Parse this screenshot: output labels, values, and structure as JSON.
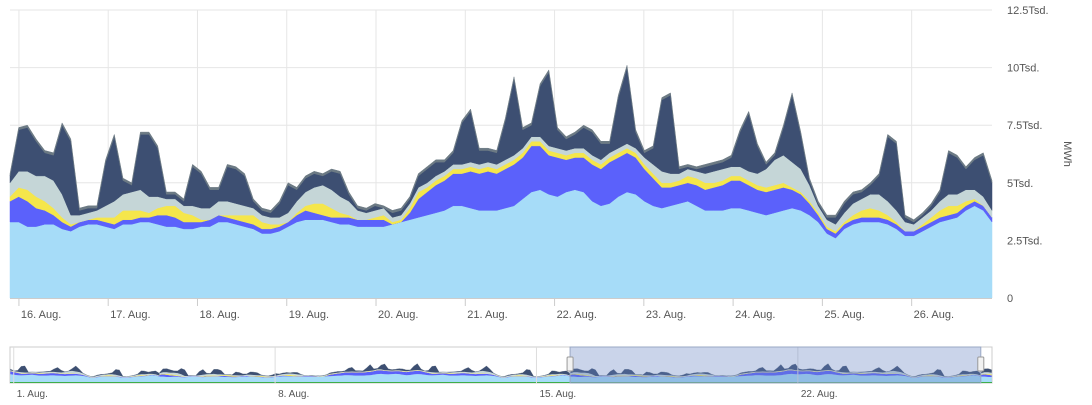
{
  "chart_data": {
    "type": "area",
    "stacked": true,
    "ylabel": "MWh",
    "ylim": [
      0,
      12500
    ],
    "y_ticks": [
      {
        "value": 0,
        "label": "0"
      },
      {
        "value": 2500,
        "label": "2.5Tsd."
      },
      {
        "value": 5000,
        "label": "5Tsd."
      },
      {
        "value": 7500,
        "label": "7.5Tsd."
      },
      {
        "value": 10000,
        "label": "10Tsd."
      },
      {
        "value": 12500,
        "label": "12.5Tsd."
      }
    ],
    "x_ticks": [
      {
        "day": 16,
        "label": "16. Aug."
      },
      {
        "day": 17,
        "label": "17. Aug."
      },
      {
        "day": 18,
        "label": "18. Aug."
      },
      {
        "day": 19,
        "label": "19. Aug."
      },
      {
        "day": 20,
        "label": "20. Aug."
      },
      {
        "day": 21,
        "label": "21. Aug."
      },
      {
        "day": 22,
        "label": "22. Aug."
      },
      {
        "day": 23,
        "label": "23. Aug."
      },
      {
        "day": 24,
        "label": "24. Aug."
      },
      {
        "day": 25,
        "label": "25. Aug."
      },
      {
        "day": 26,
        "label": "26. Aug."
      }
    ],
    "xlim_days": [
      15.9,
      26.9
    ],
    "grid": true,
    "legend": "none",
    "series": [
      {
        "color": "#a6dcf8",
        "values": [
          3300,
          3300,
          3100,
          3100,
          3200,
          3200,
          3000,
          2900,
          3100,
          3200,
          3200,
          3100,
          3000,
          3200,
          3200,
          3300,
          3300,
          3200,
          3100,
          3100,
          3000,
          3000,
          3100,
          3100,
          3300,
          3300,
          3200,
          3100,
          3000,
          2800,
          2800,
          2900,
          3100,
          3300,
          3400,
          3400,
          3400,
          3300,
          3200,
          3200,
          3100,
          3100,
          3100,
          3100,
          3200,
          3300,
          3400,
          3500,
          3600,
          3700,
          3800,
          4000,
          4000,
          3900,
          3800,
          3800,
          3800,
          3900,
          4000,
          4300,
          4600,
          4700,
          4500,
          4400,
          4600,
          4700,
          4600,
          4200,
          4000,
          4100,
          4400,
          4600,
          4500,
          4200,
          4000,
          3900,
          4000,
          4100,
          4200,
          4000,
          3800,
          3800,
          3800,
          3900,
          3900,
          3800,
          3700,
          3600,
          3700,
          3800,
          3900,
          3800,
          3600,
          3300,
          2800,
          2600,
          3000,
          3200,
          3300,
          3300,
          3300,
          3200,
          3000,
          2700,
          2700,
          2900,
          3100,
          3300,
          3400,
          3500,
          3800,
          4000,
          3800,
          3300
        ]
      },
      {
        "color": "#5b61fb",
        "values": [
          900,
          1100,
          1100,
          800,
          600,
          400,
          300,
          200,
          200,
          200,
          200,
          200,
          200,
          200,
          200,
          200,
          200,
          400,
          500,
          400,
          300,
          300,
          200,
          300,
          300,
          200,
          200,
          200,
          200,
          200,
          200,
          200,
          200,
          300,
          400,
          300,
          200,
          200,
          300,
          300,
          300,
          300,
          300,
          300,
          0,
          0,
          300,
          800,
          1000,
          1200,
          1300,
          1400,
          1400,
          1600,
          1600,
          1700,
          1600,
          1700,
          1800,
          1800,
          2000,
          1900,
          1700,
          1700,
          1400,
          1400,
          1500,
          1600,
          1600,
          1800,
          1700,
          1700,
          1600,
          1400,
          1200,
          900,
          800,
          800,
          800,
          900,
          900,
          1000,
          1100,
          1200,
          1200,
          1100,
          1000,
          1000,
          1000,
          1000,
          800,
          700,
          500,
          300,
          200,
          200,
          200,
          200,
          200,
          200,
          200,
          200,
          200,
          200,
          200,
          200,
          200,
          200,
          200,
          200,
          200,
          200,
          200,
          200
        ]
      },
      {
        "color": "#f5e64b",
        "values": [
          200,
          400,
          500,
          500,
          400,
          300,
          200,
          100,
          0,
          0,
          100,
          200,
          300,
          400,
          400,
          300,
          200,
          300,
          400,
          500,
          400,
          300,
          100,
          0,
          0,
          100,
          200,
          300,
          400,
          300,
          200,
          100,
          0,
          100,
          200,
          400,
          500,
          400,
          200,
          100,
          0,
          0,
          100,
          200,
          100,
          100,
          200,
          300,
          200,
          200,
          200,
          200,
          200,
          200,
          200,
          200,
          200,
          200,
          200,
          200,
          200,
          200,
          200,
          200,
          200,
          200,
          200,
          200,
          200,
          200,
          200,
          200,
          200,
          200,
          200,
          200,
          200,
          200,
          300,
          300,
          300,
          200,
          200,
          200,
          200,
          200,
          200,
          200,
          200,
          200,
          100,
          100,
          100,
          100,
          100,
          100,
          100,
          200,
          300,
          400,
          300,
          200,
          100,
          0,
          0,
          100,
          200,
          300,
          400,
          300,
          200,
          100,
          0,
          0
        ]
      },
      {
        "color": "#c5d6d7",
        "values": [
          600,
          700,
          800,
          900,
          1100,
          1200,
          1000,
          400,
          300,
          300,
          300,
          500,
          700,
          700,
          800,
          900,
          700,
          500,
          300,
          300,
          300,
          400,
          500,
          500,
          600,
          600,
          500,
          400,
          300,
          300,
          300,
          300,
          400,
          500,
          600,
          700,
          800,
          800,
          700,
          600,
          400,
          300,
          300,
          300,
          200,
          200,
          200,
          200,
          200,
          200,
          200,
          200,
          200,
          200,
          200,
          200,
          200,
          200,
          200,
          200,
          200,
          200,
          200,
          200,
          200,
          200,
          200,
          200,
          200,
          200,
          200,
          200,
          200,
          300,
          400,
          500,
          400,
          300,
          300,
          300,
          400,
          500,
          500,
          400,
          400,
          400,
          500,
          800,
          1100,
          1200,
          1100,
          1000,
          700,
          300,
          300,
          300,
          400,
          500,
          500,
          600,
          700,
          600,
          500,
          400,
          300,
          300,
          300,
          400,
          500,
          500,
          500,
          400,
          400,
          300
        ]
      },
      {
        "color": "#3d4f72",
        "values": [
          300,
          1800,
          1900,
          1500,
          1000,
          1100,
          3000,
          3200,
          200,
          200,
          100,
          1900,
          2800,
          600,
          300,
          2400,
          2700,
          2100,
          200,
          200,
          200,
          1700,
          1500,
          800,
          500,
          1500,
          1500,
          1300,
          300,
          200,
          200,
          600,
          1200,
          500,
          600,
          600,
          400,
          800,
          1000,
          300,
          100,
          100,
          200,
          0,
          200,
          200,
          200,
          500,
          600,
          600,
          400,
          500,
          1800,
          2200,
          600,
          500,
          500,
          1700,
          3300,
          800,
          500,
          2200,
          3200,
          800,
          500,
          600,
          900,
          1000,
          700,
          400,
          2200,
          3300,
          700,
          200,
          700,
          3100,
          3400,
          200,
          100,
          100,
          300,
          300,
          300,
          400,
          1500,
          2500,
          1200,
          200,
          200,
          1200,
          2900,
          1500,
          200,
          100,
          100,
          300,
          400,
          400,
          300,
          400,
          800,
          2800,
          2900,
          200,
          100,
          100,
          200,
          400,
          1800,
          1600,
          900,
          1300,
          1800,
          1200
        ]
      },
      {
        "color": "#6c7a84",
        "values": [
          100,
          100,
          100,
          100,
          100,
          100,
          100,
          100,
          100,
          100,
          100,
          100,
          100,
          100,
          100,
          100,
          100,
          100,
          100,
          100,
          100,
          100,
          100,
          100,
          100,
          100,
          100,
          100,
          100,
          100,
          100,
          100,
          100,
          100,
          100,
          100,
          100,
          100,
          100,
          100,
          100,
          100,
          100,
          100,
          100,
          100,
          100,
          100,
          100,
          100,
          100,
          100,
          100,
          100,
          100,
          100,
          100,
          100,
          100,
          100,
          100,
          100,
          100,
          100,
          100,
          100,
          100,
          100,
          100,
          100,
          100,
          100,
          100,
          100,
          100,
          100,
          100,
          100,
          100,
          100,
          100,
          100,
          100,
          100,
          100,
          100,
          100,
          100,
          100,
          100,
          100,
          100,
          100,
          100,
          100,
          100,
          100,
          100,
          100,
          100,
          100,
          100,
          100,
          100,
          100,
          100,
          100,
          100,
          100,
          100,
          100,
          100,
          100,
          100
        ]
      }
    ],
    "navigator": {
      "x_ticks": [
        {
          "day": 1,
          "label": "1. Aug."
        },
        {
          "day": 8,
          "label": "8. Aug."
        },
        {
          "day": 15,
          "label": "15. Aug."
        },
        {
          "day": 22,
          "label": "22. Aug."
        }
      ],
      "xlim_days": [
        0.9,
        27.2
      ],
      "selected_range_days": [
        15.9,
        26.9
      ]
    }
  }
}
